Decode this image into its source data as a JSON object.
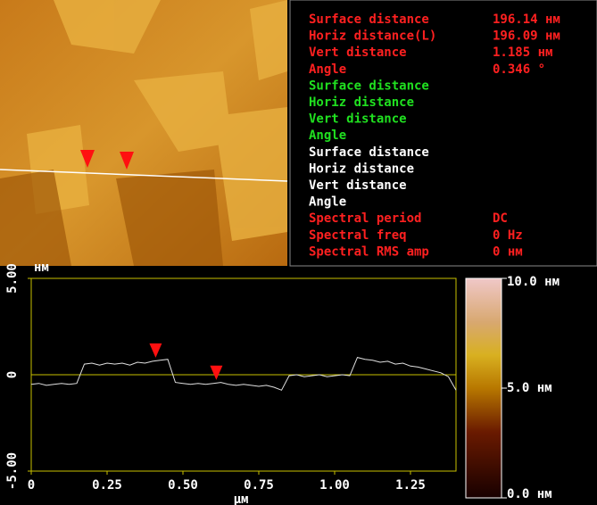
{
  "readout": [
    {
      "color": "#ff2020",
      "rows": [
        {
          "label": "Surface distance",
          "value": "196.14 нм"
        },
        {
          "label": "Horiz distance(L)",
          "value": "196.09 нм"
        },
        {
          "label": "Vert distance",
          "value": "1.185 нм"
        },
        {
          "label": "Angle",
          "value": "0.346 °"
        }
      ]
    },
    {
      "color": "#20e020",
      "rows": [
        {
          "label": "Surface distance"
        },
        {
          "label": "Horiz distance"
        },
        {
          "label": "Vert distance"
        },
        {
          "label": "Angle"
        }
      ]
    },
    {
      "color": "#ffffff",
      "rows": [
        {
          "label": "Surface distance"
        },
        {
          "label": "Horiz distance"
        },
        {
          "label": "Vert distance"
        },
        {
          "label": "Angle"
        }
      ]
    },
    {
      "color": "#ff2020",
      "rows": [
        {
          "label": "Spectral period",
          "value": "DC"
        },
        {
          "label": "Spectral freq",
          "value": "0 Hz"
        },
        {
          "label": "Spectral RMS amp",
          "value": "0 нм"
        }
      ]
    }
  ],
  "chart_data": {
    "type": "line",
    "y_unit": "нм",
    "x_unit": "μм",
    "color": "#e0e0e0",
    "axis_color": "#c8c000",
    "x": [
      0,
      0.025,
      0.05,
      0.075,
      0.1,
      0.125,
      0.15,
      0.175,
      0.2,
      0.225,
      0.25,
      0.275,
      0.3,
      0.325,
      0.35,
      0.375,
      0.4,
      0.425,
      0.45,
      0.475,
      0.5,
      0.525,
      0.55,
      0.575,
      0.6,
      0.625,
      0.65,
      0.675,
      0.7,
      0.725,
      0.75,
      0.775,
      0.8,
      0.825,
      0.85,
      0.875,
      0.9,
      0.925,
      0.95,
      0.975,
      1.0,
      1.025,
      1.05,
      1.075,
      1.1,
      1.125,
      1.15,
      1.175,
      1.2,
      1.225,
      1.25,
      1.275,
      1.3,
      1.325,
      1.35,
      1.375,
      1.4
    ],
    "values": [
      -0.5,
      -0.45,
      -0.55,
      -0.5,
      -0.45,
      -0.5,
      -0.45,
      0.55,
      0.6,
      0.5,
      0.6,
      0.55,
      0.6,
      0.5,
      0.65,
      0.6,
      0.7,
      0.75,
      0.8,
      -0.4,
      -0.45,
      -0.5,
      -0.45,
      -0.5,
      -0.45,
      -0.4,
      -0.5,
      -0.55,
      -0.5,
      -0.55,
      -0.6,
      -0.55,
      -0.65,
      -0.8,
      -0.05,
      0,
      -0.1,
      -0.05,
      0,
      -0.1,
      -0.05,
      0,
      -0.05,
      0.9,
      0.8,
      0.75,
      0.65,
      0.7,
      0.55,
      0.6,
      0.45,
      0.4,
      0.3,
      0.2,
      0.1,
      -0.1,
      -0.8
    ],
    "cursors": [
      0.41,
      0.61
    ],
    "xlim": [
      0,
      1.4
    ],
    "ylim": [
      -5,
      5
    ],
    "xticks": [
      0,
      0.25,
      {
        "value": 0.5,
        "label": "0.50"
      },
      0.75,
      {
        "value": 1,
        "label": "1.00"
      },
      1.25
    ],
    "yticks": [
      {
        "value": -5,
        "label": "-5.00"
      },
      0,
      {
        "value": 5,
        "label": "5.00"
      }
    ],
    "colorbar": {
      "lim": [
        0,
        10
      ],
      "ticks": [
        {
          "value": 0,
          "label": "0.0 нм"
        },
        {
          "value": 5,
          "label": "5.0 нм"
        },
        {
          "value": 10,
          "label": "10.0 нм"
        }
      ]
    }
  }
}
